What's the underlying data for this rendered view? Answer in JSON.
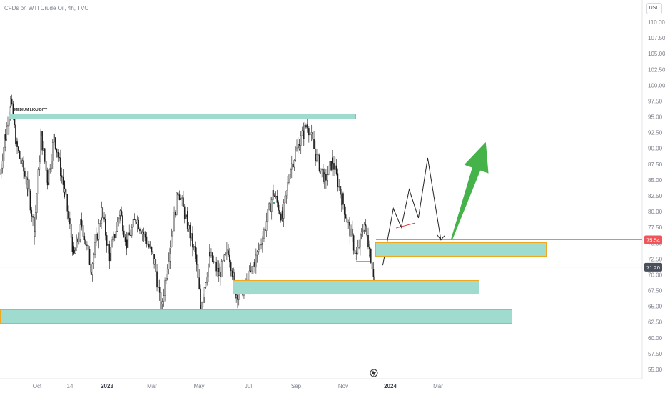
{
  "header": {
    "symbol_text": "CFDs on WTI Crude Oil, 4h, TVC",
    "currency_button": "USD"
  },
  "chart_data": {
    "type": "candlestick",
    "title": "CFDs on WTI Crude Oil, 4h, TVC",
    "y_axis": {
      "range": [
        55.0,
        110.0
      ],
      "ticks": [
        "110.00",
        "107.50",
        "105.00",
        "102.50",
        "100.00",
        "97.50",
        "95.00",
        "92.50",
        "90.00",
        "87.50",
        "85.00",
        "82.50",
        "80.00",
        "77.50",
        "75.00",
        "72.50",
        "70.00",
        "67.50",
        "65.00",
        "62.50",
        "60.00",
        "57.50",
        "55.00"
      ]
    },
    "x_axis": {
      "ticks": [
        {
          "label": "Oct",
          "bold": false
        },
        {
          "label": "14",
          "bold": false
        },
        {
          "label": "2023",
          "bold": true
        },
        {
          "label": "Mar",
          "bold": false
        },
        {
          "label": "May",
          "bold": false
        },
        {
          "label": "Jul",
          "bold": false
        },
        {
          "label": "Sep",
          "bold": false
        },
        {
          "label": "Nov",
          "bold": false
        },
        {
          "label": "2024",
          "bold": true
        },
        {
          "label": "Mar",
          "bold": false
        }
      ]
    },
    "price_path": [
      {
        "x": 0,
        "y": 86
      },
      {
        "x": 0.4,
        "y": 92
      },
      {
        "x": 0.8,
        "y": 97.5
      },
      {
        "x": 1.3,
        "y": 90
      },
      {
        "x": 2.1,
        "y": 84
      },
      {
        "x": 2.6,
        "y": 77
      },
      {
        "x": 3.1,
        "y": 92
      },
      {
        "x": 3.6,
        "y": 85
      },
      {
        "x": 4.1,
        "y": 92
      },
      {
        "x": 4.9,
        "y": 83
      },
      {
        "x": 5.6,
        "y": 73
      },
      {
        "x": 6.2,
        "y": 78
      },
      {
        "x": 6.9,
        "y": 71
      },
      {
        "x": 7.7,
        "y": 80
      },
      {
        "x": 8.3,
        "y": 73
      },
      {
        "x": 9.1,
        "y": 80
      },
      {
        "x": 9.6,
        "y": 75
      },
      {
        "x": 10.3,
        "y": 79
      },
      {
        "x": 11.0,
        "y": 76
      },
      {
        "x": 11.7,
        "y": 72
      },
      {
        "x": 12.2,
        "y": 64.5
      },
      {
        "x": 12.9,
        "y": 75
      },
      {
        "x": 13.5,
        "y": 83.5
      },
      {
        "x": 14.2,
        "y": 78
      },
      {
        "x": 14.8,
        "y": 73
      },
      {
        "x": 15.2,
        "y": 65
      },
      {
        "x": 15.9,
        "y": 73
      },
      {
        "x": 16.6,
        "y": 70
      },
      {
        "x": 17.3,
        "y": 74
      },
      {
        "x": 17.9,
        "y": 67
      },
      {
        "x": 18.6,
        "y": 68
      },
      {
        "x": 19.3,
        "y": 72
      },
      {
        "x": 19.9,
        "y": 76
      },
      {
        "x": 20.7,
        "y": 83
      },
      {
        "x": 21.4,
        "y": 79
      },
      {
        "x": 22.0,
        "y": 87
      },
      {
        "x": 22.7,
        "y": 91
      },
      {
        "x": 23.3,
        "y": 94
      },
      {
        "x": 23.9,
        "y": 89
      },
      {
        "x": 24.6,
        "y": 85
      },
      {
        "x": 25.2,
        "y": 88
      },
      {
        "x": 25.9,
        "y": 82
      },
      {
        "x": 26.5,
        "y": 77
      },
      {
        "x": 27.0,
        "y": 73
      },
      {
        "x": 27.6,
        "y": 78
      },
      {
        "x": 28.0,
        "y": 74
      },
      {
        "x": 28.4,
        "y": 69
      }
    ],
    "levels": [
      {
        "name": "current_price_line",
        "value": 71.2,
        "color": "#cfd3dc"
      },
      {
        "name": "target_line",
        "value": 75.54,
        "color": "#f0555a"
      }
    ],
    "price_labels": [
      {
        "text": "75.54",
        "value": 75.54,
        "color": "#f0555a"
      },
      {
        "text": "71.20",
        "value": 71.2,
        "color": "#4a4f5c"
      }
    ],
    "zones": [
      {
        "name": "medium-liquidity-zone",
        "label": "MEDIUM LIQUIDITY",
        "top": 95.5,
        "bottom": 94.6
      },
      {
        "name": "target-demand-zone",
        "label": "",
        "top": 75.2,
        "bottom": 72.9
      },
      {
        "name": "mid-demand-zone",
        "label": "",
        "top": 69.1,
        "bottom": 66.9
      },
      {
        "name": "low-demand-zone",
        "label": "",
        "top": 64.5,
        "bottom": 62.2
      }
    ],
    "projection_path_values": [
      {
        "x": 29.0,
        "y": 71.5
      },
      {
        "x": 29.8,
        "y": 80.5
      },
      {
        "x": 30.4,
        "y": 77.5
      },
      {
        "x": 31.0,
        "y": 83.5
      },
      {
        "x": 31.7,
        "y": 79
      },
      {
        "x": 32.4,
        "y": 88.5
      },
      {
        "x": 33.4,
        "y": 75.5
      }
    ],
    "arrow": {
      "from": {
        "x": 34.2,
        "y": 75.5
      },
      "to": {
        "x": 36.8,
        "y": 91
      },
      "color": "#45b34a"
    },
    "colors": {
      "zone_fill": "#9fdccf",
      "zone_border": "#f0a81e",
      "candle": "#1a1a1a",
      "axis_text": "#7a7f8c"
    }
  }
}
